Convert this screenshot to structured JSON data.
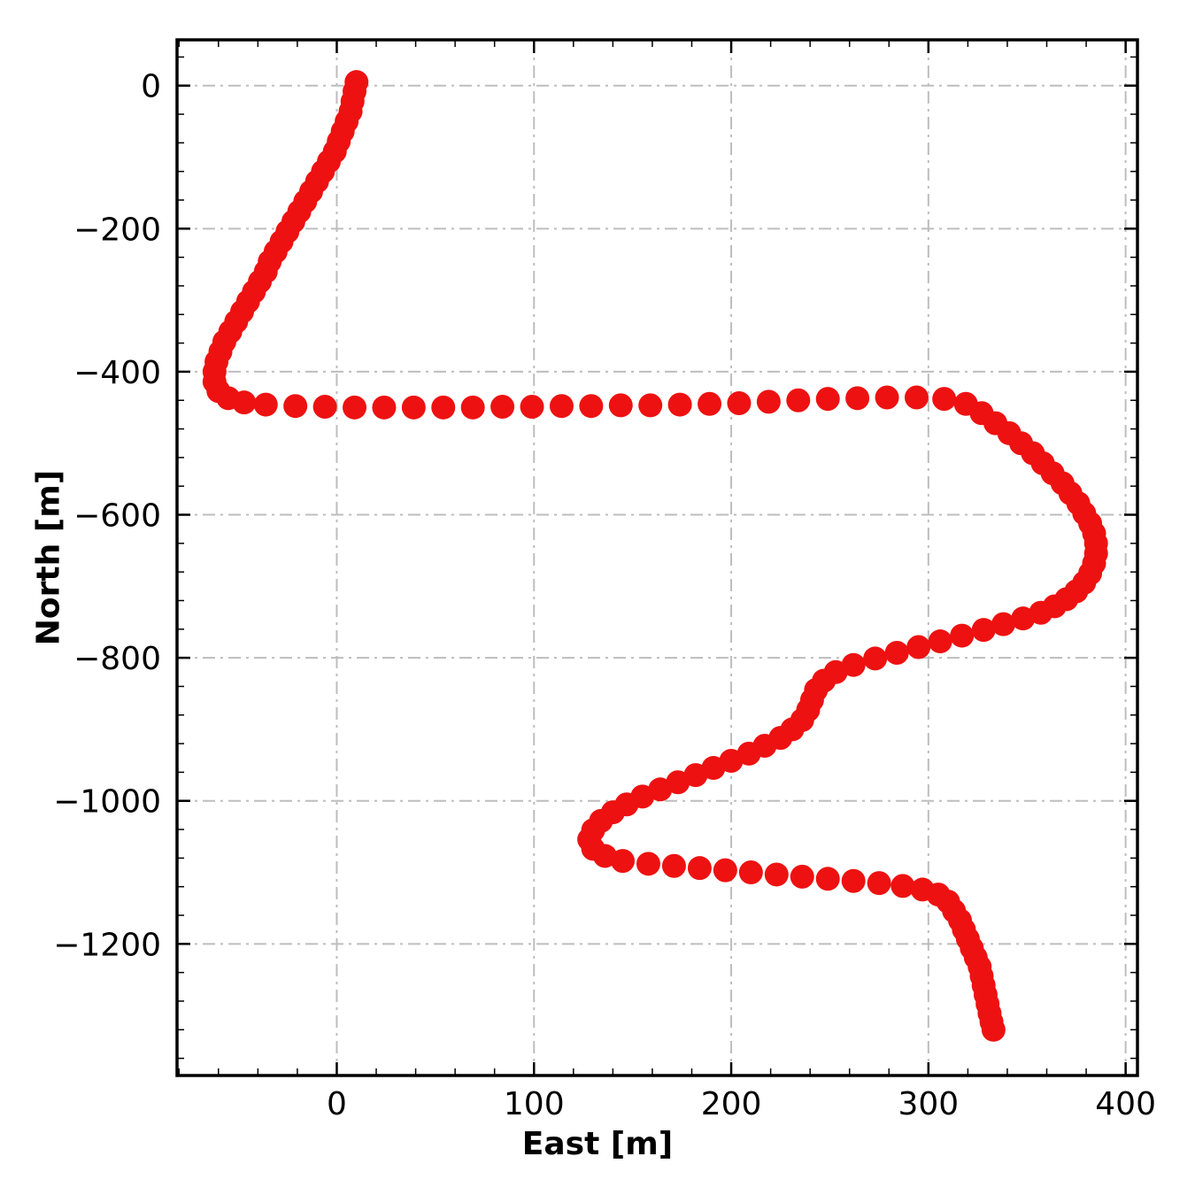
{
  "page": {
    "background": "#ffffff"
  },
  "chart_data": {
    "type": "scatter",
    "title": "",
    "xlabel": "East [m]",
    "ylabel": "North [m]",
    "xlim": [
      -81,
      406
    ],
    "ylim": [
      -1384,
      64
    ],
    "xticks": [
      0,
      100,
      200,
      300,
      400
    ],
    "yticks": [
      0,
      -200,
      -400,
      -600,
      -800,
      -1000,
      -1200
    ],
    "x_minor_step": 20,
    "y_minor_step": 40,
    "grid": true,
    "grid_style": "dash-dot",
    "grid_color": "#bdbdbd",
    "border_color": "#000000",
    "marker_color": "#ee1111",
    "marker_radius_px": 13.5,
    "legend": "none",
    "points": [
      [
        10,
        5
      ],
      [
        9,
        -8
      ],
      [
        8,
        -22
      ],
      [
        7,
        -36
      ],
      [
        5,
        -50
      ],
      [
        3,
        -64
      ],
      [
        1,
        -78
      ],
      [
        -1,
        -92
      ],
      [
        -4,
        -106
      ],
      [
        -7,
        -120
      ],
      [
        -10,
        -134
      ],
      [
        -13,
        -148
      ],
      [
        -16,
        -162
      ],
      [
        -19,
        -176
      ],
      [
        -22,
        -190
      ],
      [
        -25,
        -204
      ],
      [
        -28,
        -218
      ],
      [
        -31,
        -232
      ],
      [
        -34,
        -246
      ],
      [
        -36,
        -260
      ],
      [
        -39,
        -274
      ],
      [
        -42,
        -288
      ],
      [
        -45,
        -302
      ],
      [
        -48,
        -316
      ],
      [
        -51,
        -330
      ],
      [
        -54,
        -344
      ],
      [
        -57,
        -358
      ],
      [
        -59,
        -372
      ],
      [
        -61,
        -386
      ],
      [
        -62,
        -400
      ],
      [
        -62,
        -414
      ],
      [
        -60,
        -427
      ],
      [
        -55,
        -437
      ],
      [
        -47,
        -443
      ],
      [
        -36,
        -446
      ],
      [
        -21,
        -448
      ],
      [
        -6,
        -449
      ],
      [
        9,
        -450
      ],
      [
        24,
        -450
      ],
      [
        39,
        -450
      ],
      [
        54,
        -450
      ],
      [
        69,
        -450
      ],
      [
        84,
        -449
      ],
      [
        99,
        -449
      ],
      [
        114,
        -448
      ],
      [
        129,
        -448
      ],
      [
        144,
        -447
      ],
      [
        159,
        -447
      ],
      [
        174,
        -446
      ],
      [
        189,
        -445
      ],
      [
        204,
        -444
      ],
      [
        219,
        -442
      ],
      [
        234,
        -440
      ],
      [
        249,
        -438
      ],
      [
        264,
        -437
      ],
      [
        279,
        -436
      ],
      [
        294,
        -436
      ],
      [
        308,
        -438
      ],
      [
        319,
        -445
      ],
      [
        327,
        -458
      ],
      [
        334,
        -472
      ],
      [
        341,
        -486
      ],
      [
        347,
        -500
      ],
      [
        353,
        -514
      ],
      [
        358,
        -528
      ],
      [
        363,
        -542
      ],
      [
        368,
        -556
      ],
      [
        372,
        -570
      ],
      [
        376,
        -584
      ],
      [
        379,
        -598
      ],
      [
        382,
        -612
      ],
      [
        384,
        -626
      ],
      [
        385,
        -640
      ],
      [
        385,
        -654
      ],
      [
        384,
        -668
      ],
      [
        382,
        -682
      ],
      [
        379,
        -695
      ],
      [
        375,
        -707
      ],
      [
        370,
        -718
      ],
      [
        364,
        -728
      ],
      [
        357,
        -737
      ],
      [
        348,
        -745
      ],
      [
        338,
        -753
      ],
      [
        328,
        -761
      ],
      [
        317,
        -769
      ],
      [
        306,
        -777
      ],
      [
        295,
        -785
      ],
      [
        284,
        -793
      ],
      [
        273,
        -801
      ],
      [
        262,
        -810
      ],
      [
        253,
        -820
      ],
      [
        247,
        -832
      ],
      [
        243,
        -845
      ],
      [
        241,
        -859
      ],
      [
        239,
        -873
      ],
      [
        236,
        -887
      ],
      [
        231,
        -900
      ],
      [
        225,
        -912
      ],
      [
        217,
        -923
      ],
      [
        209,
        -934
      ],
      [
        200,
        -944
      ],
      [
        191,
        -954
      ],
      [
        182,
        -964
      ],
      [
        173,
        -974
      ],
      [
        164,
        -984
      ],
      [
        155,
        -994
      ],
      [
        147,
        -1005
      ],
      [
        140,
        -1016
      ],
      [
        134,
        -1028
      ],
      [
        130,
        -1041
      ],
      [
        128,
        -1054
      ],
      [
        130,
        -1067
      ],
      [
        136,
        -1077
      ],
      [
        145,
        -1084
      ],
      [
        158,
        -1088
      ],
      [
        171,
        -1091
      ],
      [
        184,
        -1094
      ],
      [
        197,
        -1097
      ],
      [
        210,
        -1100
      ],
      [
        223,
        -1103
      ],
      [
        236,
        -1106
      ],
      [
        249,
        -1109
      ],
      [
        262,
        -1112
      ],
      [
        275,
        -1115
      ],
      [
        287,
        -1119
      ],
      [
        297,
        -1124
      ],
      [
        305,
        -1131
      ],
      [
        310,
        -1141
      ],
      [
        313,
        -1154
      ],
      [
        316,
        -1167
      ],
      [
        318,
        -1180
      ],
      [
        320,
        -1193
      ],
      [
        322,
        -1206
      ],
      [
        324,
        -1219
      ],
      [
        326,
        -1232
      ],
      [
        327,
        -1245
      ],
      [
        328,
        -1258
      ],
      [
        329,
        -1271
      ],
      [
        330,
        -1284
      ],
      [
        331,
        -1297
      ],
      [
        332,
        -1309
      ],
      [
        333,
        -1320
      ]
    ]
  }
}
